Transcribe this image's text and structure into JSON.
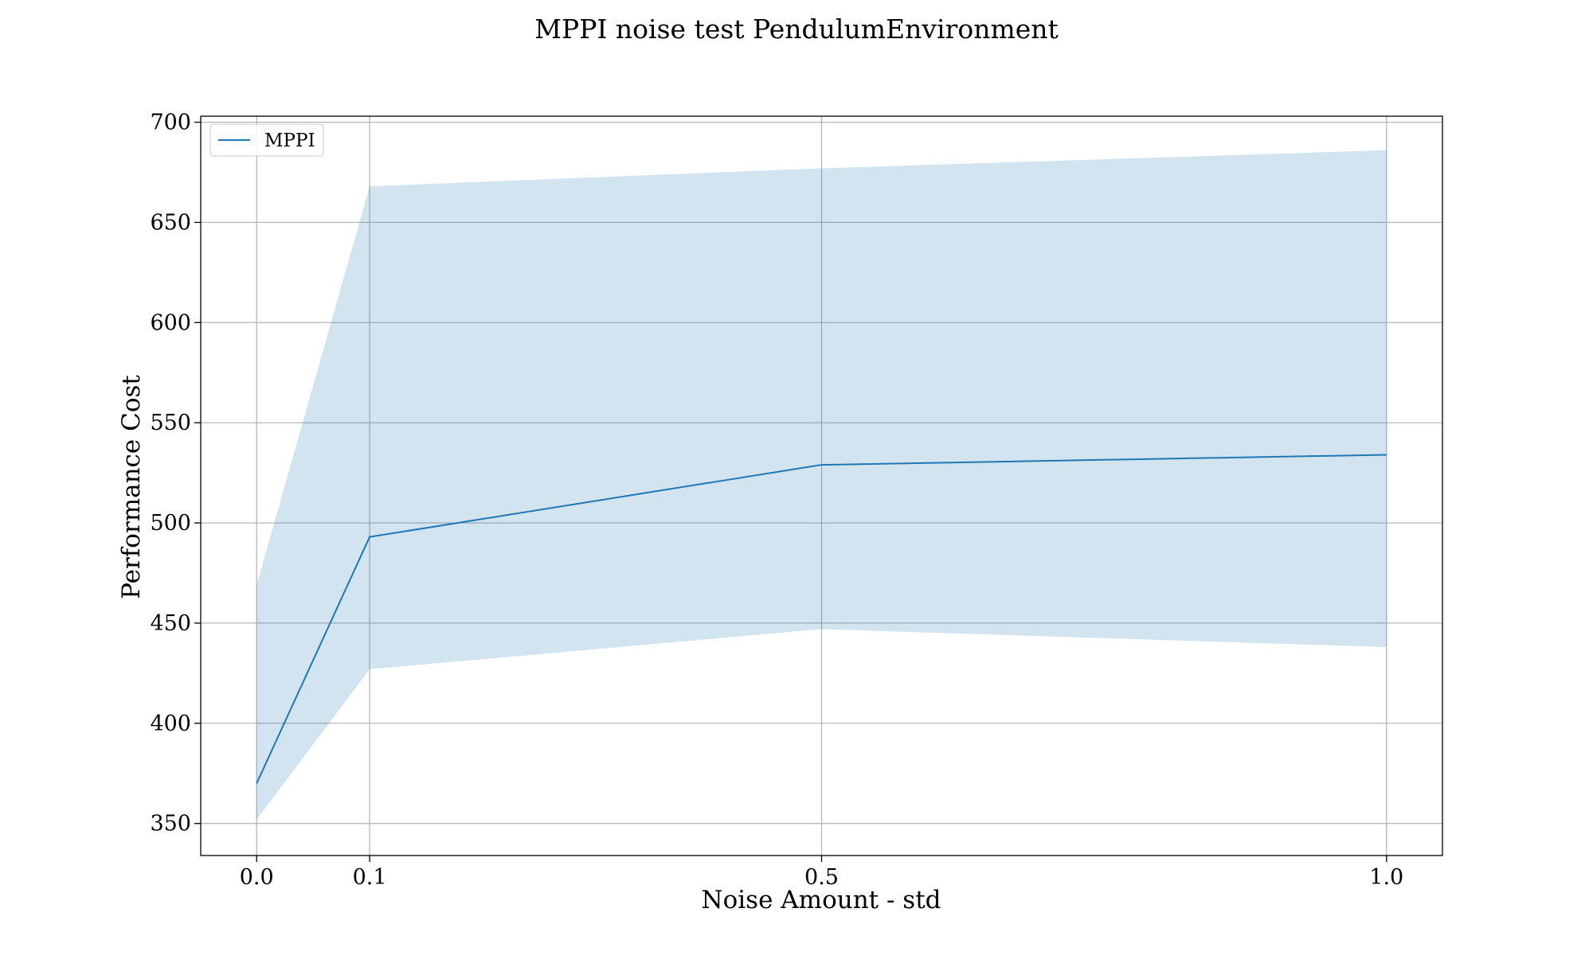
{
  "chart_data": {
    "type": "line",
    "title": "MPPI noise test PendulumEnvironment",
    "xlabel": "Noise Amount - std",
    "ylabel": "Performance Cost",
    "x": [
      0.0,
      0.1,
      0.5,
      1.0
    ],
    "xticks": [
      "0.0",
      "0.1",
      "0.5",
      "1.0"
    ],
    "yticks": [
      350,
      400,
      450,
      500,
      550,
      600,
      650,
      700
    ],
    "xlim": [
      -0.0495,
      1.0495
    ],
    "ylim": [
      334,
      703
    ],
    "grid": true,
    "legend_position": "top-left",
    "series": [
      {
        "name": "MPPI",
        "color": "#1f77b4",
        "values": [
          370,
          493,
          529,
          534
        ],
        "band_upper": [
          469,
          668,
          677,
          686
        ],
        "band_lower": [
          352,
          427,
          447,
          438
        ],
        "band_color": "#1f77b4",
        "band_opacity": 0.2
      }
    ]
  }
}
